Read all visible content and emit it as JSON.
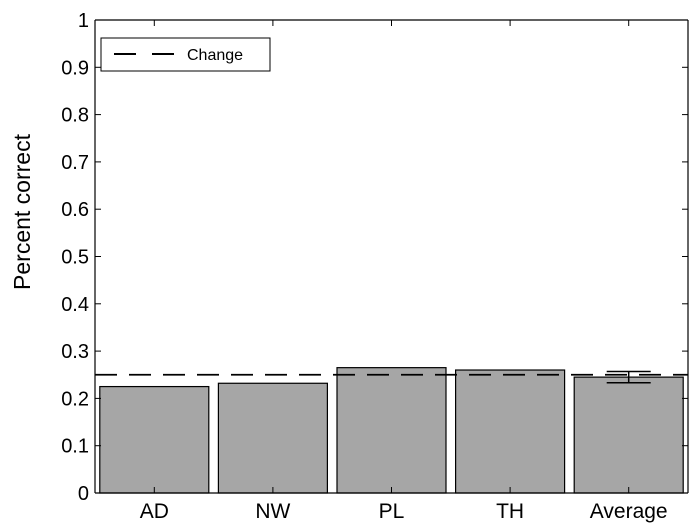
{
  "chart_data": {
    "type": "bar",
    "title": "",
    "xlabel": "",
    "ylabel": "Percent correct",
    "categories": [
      "AD",
      "NW",
      "PL",
      "TH",
      "Average"
    ],
    "values": [
      0.225,
      0.232,
      0.265,
      0.26,
      0.245
    ],
    "error_bars": [
      null,
      null,
      null,
      null,
      0.012
    ],
    "ylim": [
      0,
      1
    ],
    "yticks": [
      "0",
      "0.1",
      "0.2",
      "0.3",
      "0.4",
      "0.5",
      "0.6",
      "0.7",
      "0.8",
      "0.9",
      "1"
    ],
    "grid": false,
    "reference_line": {
      "name": "Change",
      "value": 0.25,
      "style": "dashed"
    },
    "legend": {
      "placement": "top-left",
      "entries": [
        "Change"
      ]
    },
    "colors": {
      "bar": "#a6a6a6",
      "edge": "#000000"
    }
  }
}
